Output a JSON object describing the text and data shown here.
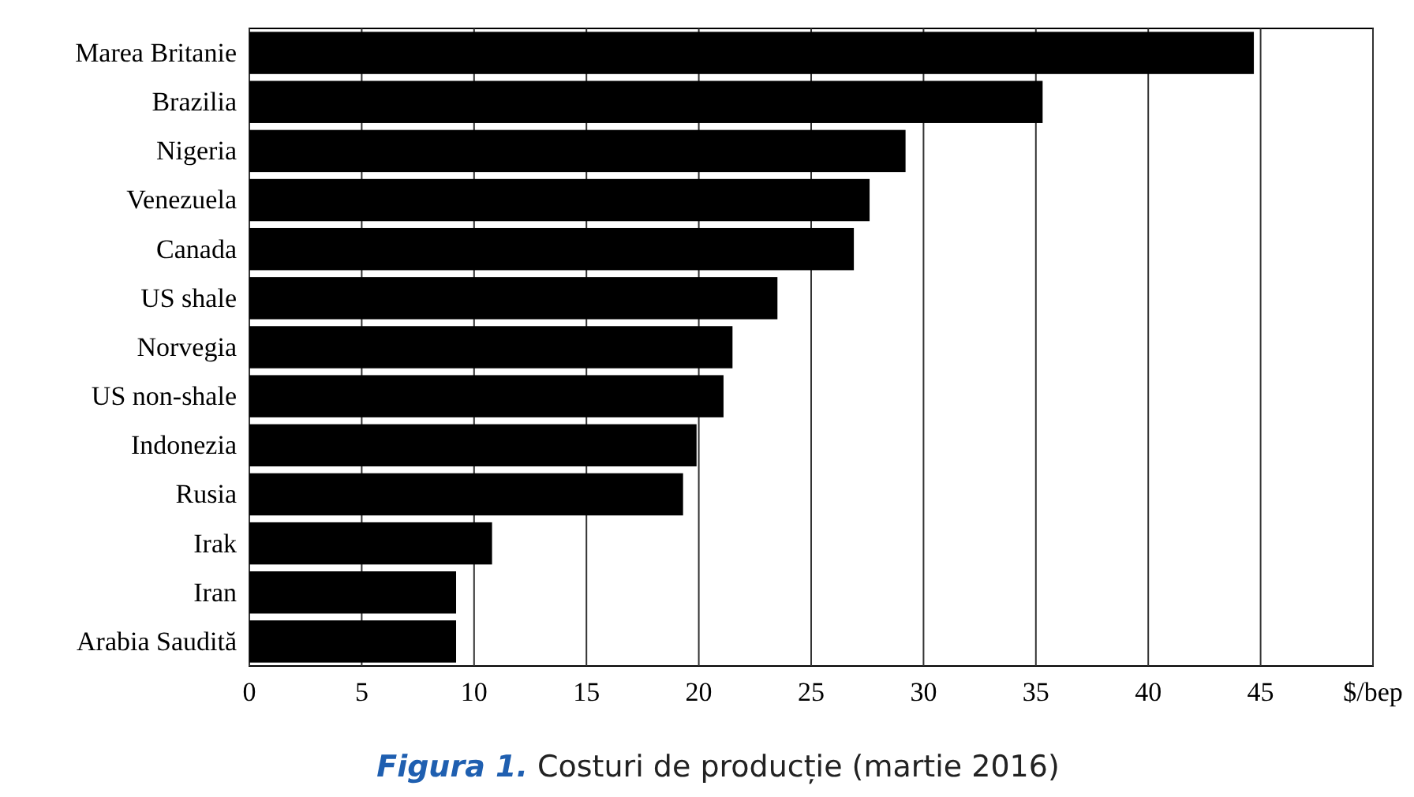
{
  "chart_data": {
    "type": "bar",
    "orientation": "horizontal",
    "title": "Figura 1. Costuri de producție (martie 2016)",
    "categories": [
      "Marea Britanie",
      "Brazilia",
      "Nigeria",
      "Venezuela",
      "Canada",
      "US shale",
      "Norvegia",
      "US non-shale",
      "Indonezia",
      "Rusia",
      "Irak",
      "Iran",
      "Arabia Saudită"
    ],
    "values": [
      44.7,
      35.3,
      29.2,
      27.6,
      26.9,
      23.5,
      21.5,
      21.1,
      19.9,
      19.3,
      10.8,
      9.2,
      9.2
    ],
    "color": "#000000",
    "xlim": [
      0,
      50
    ],
    "xticks": [
      0,
      5,
      10,
      15,
      20,
      25,
      30,
      35,
      40,
      45,
      {
        "value": 50,
        "label": "$/bep"
      }
    ],
    "grid": "x"
  }
}
